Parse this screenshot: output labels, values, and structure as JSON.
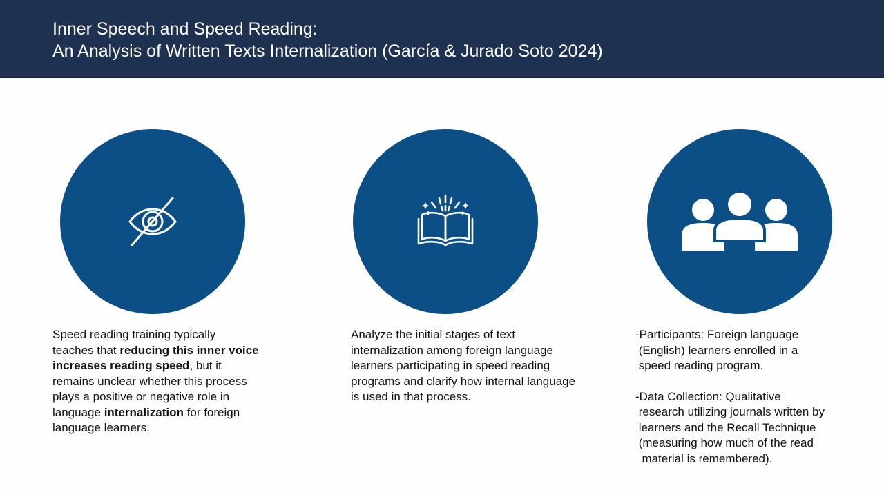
{
  "header": {
    "title_line1": "Inner Speech and Speed Reading:",
    "title_line2": "An Analysis of Written Texts Internalization (García & Jurado Soto 2024)"
  },
  "colors": {
    "header_bg": "#1f3150",
    "circle_bg": "#0b4f86",
    "text": "#111111"
  },
  "columns": [
    {
      "icon": "eye-slash-icon",
      "text_a": "Speed reading training typically teaches that ",
      "text_bold1": "reducing this inner voice increases reading speed",
      "text_b": ", but it remains unclear whether this process plays a positive or negative role in language ",
      "text_bold2": "internalization",
      "text_c": " for foreign language learners."
    },
    {
      "icon": "open-book-icon",
      "text": "Analyze the initial stages of text internalization among foreign language learners participating in speed reading programs and clarify how internal language is used in that process."
    },
    {
      "icon": "group-users-icon",
      "participants_line1": "-Participants: Foreign language",
      "participants_line2": " (English) learners enrolled in a",
      "participants_line3": " speed reading program.",
      "data_line1": "-Data Collection: Qualitative",
      "data_line2": " research utilizing journals written by",
      "data_line3": " learners and the Recall Technique",
      "data_line4": " (measuring how much of the read",
      "data_line5": "  material is remembered)."
    }
  ]
}
